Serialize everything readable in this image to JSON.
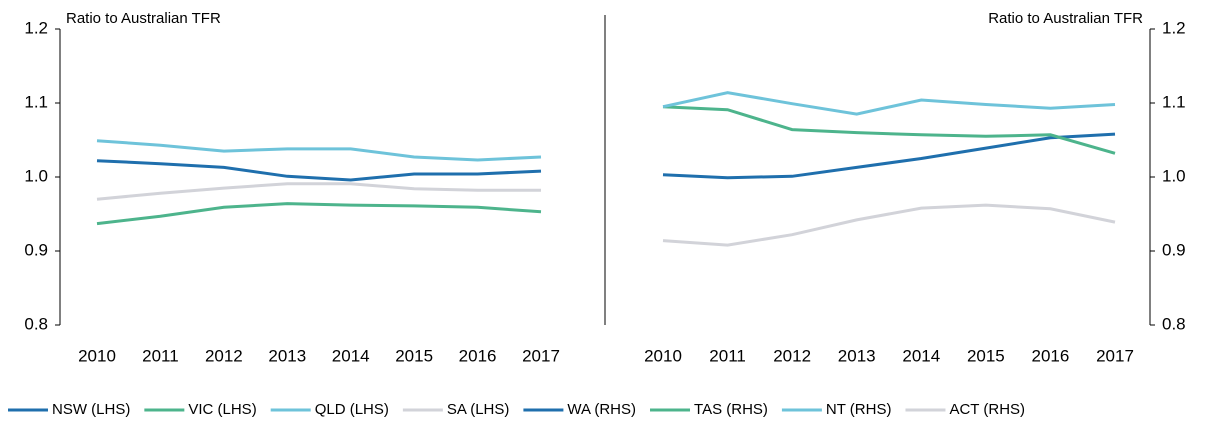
{
  "chart_data": [
    {
      "type": "line",
      "y_label": "Ratio to Australian TFR",
      "y_axis_side": "left",
      "categories": [
        "2010",
        "2011",
        "2012",
        "2013",
        "2014",
        "2015",
        "2016",
        "2017"
      ],
      "ylim": [
        0.8,
        1.2
      ],
      "yticks": [
        0.8,
        0.9,
        {
          "value": 1,
          "label": "1.0"
        },
        1.1,
        1.2
      ],
      "series": [
        {
          "name": "NSW (LHS)",
          "color": "#1f6fad",
          "values": [
            1.022,
            1.018,
            1.013,
            1.001,
            0.996,
            1.004,
            1.004,
            1.008
          ]
        },
        {
          "name": "VIC (LHS)",
          "color": "#4db48c",
          "values": [
            0.937,
            0.947,
            0.959,
            0.964,
            0.962,
            0.961,
            0.959,
            0.953
          ]
        },
        {
          "name": "QLD (LHS)",
          "color": "#6ec3da",
          "values": [
            1.049,
            1.043,
            1.035,
            1.038,
            1.038,
            1.027,
            1.023,
            1.027
          ]
        },
        {
          "name": "SA (LHS)",
          "color": "#d2d3d9",
          "values": [
            0.97,
            0.978,
            0.985,
            0.991,
            0.991,
            0.984,
            0.982,
            0.982
          ]
        }
      ]
    },
    {
      "type": "line",
      "y_label": "Ratio to Australian TFR",
      "y_axis_side": "right",
      "categories": [
        "2010",
        "2011",
        "2012",
        "2013",
        "2014",
        "2015",
        "2016",
        "2017"
      ],
      "ylim": [
        0.8,
        1.2
      ],
      "yticks": [
        0.8,
        0.9,
        {
          "value": 1,
          "label": "1.0"
        },
        1.1,
        1.2
      ],
      "series": [
        {
          "name": "WA (RHS)",
          "color": "#1f6fad",
          "values": [
            1.003,
            0.999,
            1.001,
            1.013,
            1.025,
            1.039,
            1.053,
            1.058
          ]
        },
        {
          "name": "TAS (RHS)",
          "color": "#4db48c",
          "values": [
            1.095,
            1.091,
            1.064,
            1.06,
            1.057,
            1.055,
            1.057,
            1.032
          ]
        },
        {
          "name": "NT (RHS)",
          "color": "#6ec3da",
          "values": [
            1.095,
            1.114,
            1.099,
            1.085,
            1.104,
            1.098,
            1.093,
            1.098
          ]
        },
        {
          "name": "ACT (RHS)",
          "color": "#d2d3d9",
          "values": [
            0.914,
            0.908,
            0.922,
            0.942,
            0.958,
            0.962,
            0.957,
            0.939
          ]
        }
      ]
    }
  ]
}
